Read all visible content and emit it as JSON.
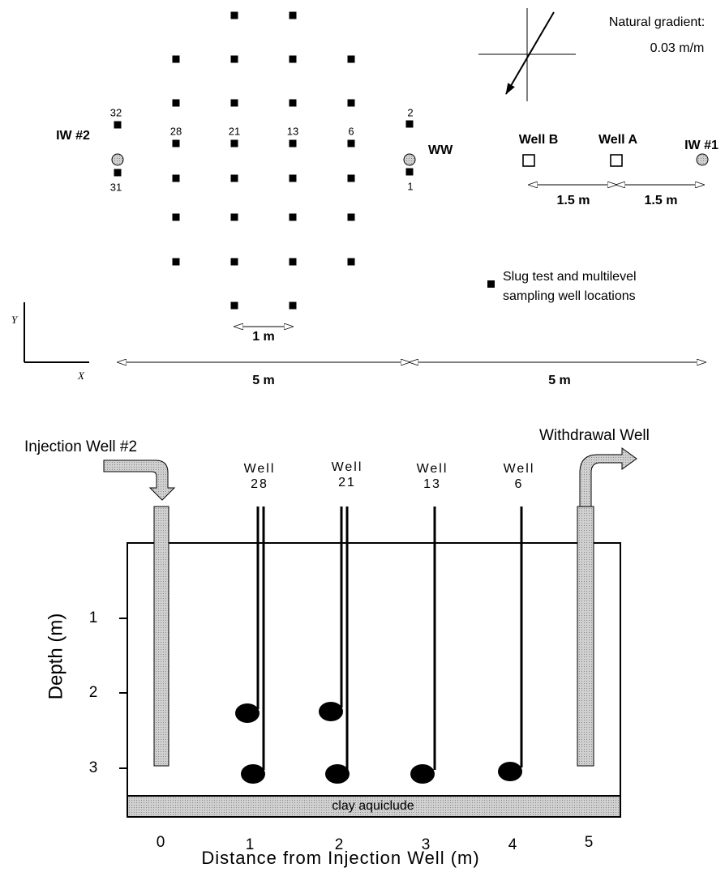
{
  "plan_view": {
    "sampler_labels": [
      "32",
      "31",
      "2",
      "1",
      "28",
      "21",
      "13",
      "6"
    ],
    "wells": {
      "iw2": "IW #2",
      "ww": "WW",
      "well_b": "Well B",
      "well_a": "Well A",
      "iw1": "IW #1"
    },
    "gradient": {
      "title": "Natural gradient:",
      "value": "0.03 m/m"
    },
    "spacings": [
      "1.5 m",
      "1.5 m",
      "1 m",
      "5 m",
      "5 m"
    ],
    "legend": [
      "Slug test and multilevel",
      "sampling well locations"
    ],
    "axes": [
      "Y",
      "X"
    ]
  },
  "section": {
    "injection_well": "Injection Well #2",
    "withdrawal_well": "Withdrawal Well",
    "wells": [
      {
        "label": "Well",
        "number": "28"
      },
      {
        "label": "Well",
        "number": "21"
      },
      {
        "label": "Well",
        "number": "13"
      },
      {
        "label": "Well",
        "number": "6"
      }
    ],
    "clay": "clay aquiclude",
    "depth_ticks": [
      "1",
      "2",
      "3"
    ],
    "distance_ticks": [
      "0",
      "1",
      "2",
      "3",
      "4",
      "5"
    ],
    "y_label": "Depth (m)",
    "x_label": "Distance from Injection Well (m)"
  }
}
